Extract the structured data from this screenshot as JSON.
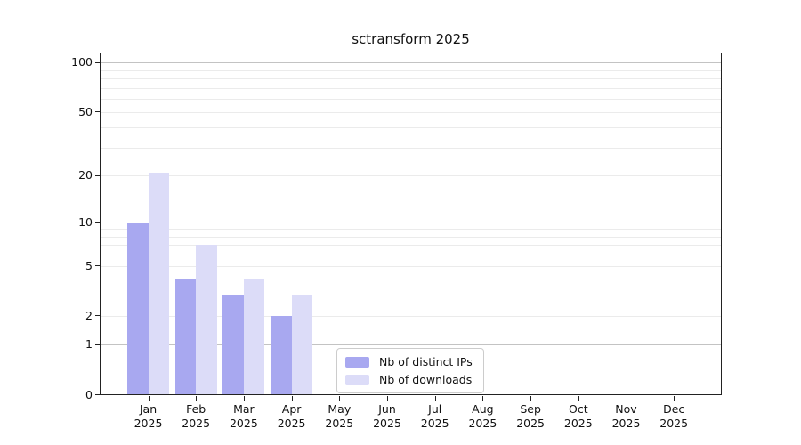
{
  "chart_data": {
    "type": "bar",
    "title": "sctransform 2025",
    "categories": [
      "Jan",
      "Feb",
      "Mar",
      "Apr",
      "May",
      "Jun",
      "Jul",
      "Aug",
      "Sep",
      "Oct",
      "Nov",
      "Dec"
    ],
    "year": "2025",
    "series": [
      {
        "name": "Nb of distinct IPs",
        "color": "#a8a8f0",
        "values": [
          10,
          4,
          3,
          2,
          0,
          0,
          0,
          0,
          0,
          0,
          0,
          0
        ]
      },
      {
        "name": "Nb of downloads",
        "color": "#dcdcf8",
        "values": [
          21,
          7,
          4,
          3,
          0,
          0,
          0,
          0,
          0,
          0,
          0,
          0
        ]
      }
    ],
    "y_axis": {
      "scale": "log1p",
      "ticks": [
        0,
        1,
        2,
        5,
        10,
        20,
        50,
        100
      ],
      "max": 115,
      "major_gridlines": [
        1,
        10,
        100
      ],
      "minor_gridlines": [
        2,
        3,
        4,
        5,
        6,
        7,
        8,
        9,
        20,
        30,
        40,
        50,
        60,
        70,
        80,
        90
      ]
    },
    "x_axis": {
      "label_style": "two-line month/year"
    },
    "legend_position": "bottom-center",
    "grid": true,
    "colors": {
      "grid_major": "#c3c3c3",
      "grid_minor": "#ebebeb",
      "axis": "#222222",
      "legend_border": "#cccccc",
      "background": "#ffffff",
      "text": "#111111"
    }
  }
}
